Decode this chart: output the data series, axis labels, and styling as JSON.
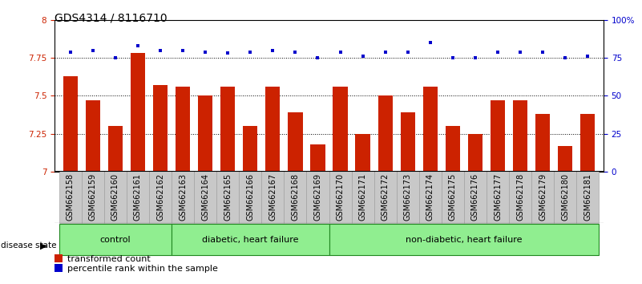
{
  "title": "GDS4314 / 8116710",
  "samples": [
    "GSM662158",
    "GSM662159",
    "GSM662160",
    "GSM662161",
    "GSM662162",
    "GSM662163",
    "GSM662164",
    "GSM662165",
    "GSM662166",
    "GSM662167",
    "GSM662168",
    "GSM662169",
    "GSM662170",
    "GSM662171",
    "GSM662172",
    "GSM662173",
    "GSM662174",
    "GSM662175",
    "GSM662176",
    "GSM662177",
    "GSM662178",
    "GSM662179",
    "GSM662180",
    "GSM662181"
  ],
  "bar_values": [
    7.63,
    7.47,
    7.3,
    7.78,
    7.57,
    7.56,
    7.5,
    7.56,
    7.3,
    7.56,
    7.39,
    7.18,
    7.56,
    7.25,
    7.5,
    7.39,
    7.56,
    7.3,
    7.25,
    7.47,
    7.47,
    7.38,
    7.17,
    7.38
  ],
  "percentile_values": [
    79,
    80,
    75,
    83,
    80,
    80,
    79,
    78,
    79,
    80,
    79,
    75,
    79,
    76,
    79,
    79,
    85,
    75,
    75,
    79,
    79,
    79,
    75,
    76
  ],
  "bar_color": "#cc2200",
  "dot_color": "#0000cc",
  "ylim_left": [
    7.0,
    8.0
  ],
  "ylim_right": [
    0,
    100
  ],
  "yticks_left": [
    7.0,
    7.25,
    7.5,
    7.75,
    8.0
  ],
  "ytick_labels_left": [
    "7",
    "7.25",
    "7.5",
    "7.75",
    "8"
  ],
  "yticks_right": [
    0,
    25,
    50,
    75,
    100
  ],
  "ytick_labels_right": [
    "0",
    "25",
    "50",
    "75",
    "100%"
  ],
  "dotted_line_values": [
    7.25,
    7.5,
    7.75
  ],
  "title_fontsize": 10,
  "tick_fontsize": 7.5,
  "label_fontsize": 7,
  "groups": [
    {
      "label": "control",
      "start": 0,
      "end": 4
    },
    {
      "label": "diabetic, heart failure",
      "start": 5,
      "end": 11
    },
    {
      "label": "non-diabetic, heart failure",
      "start": 12,
      "end": 23
    }
  ],
  "group_color": "#90ee90",
  "group_border_color": "#228822",
  "xticklabel_bg": "#c8c8c8",
  "xticklabel_border": "#999999"
}
